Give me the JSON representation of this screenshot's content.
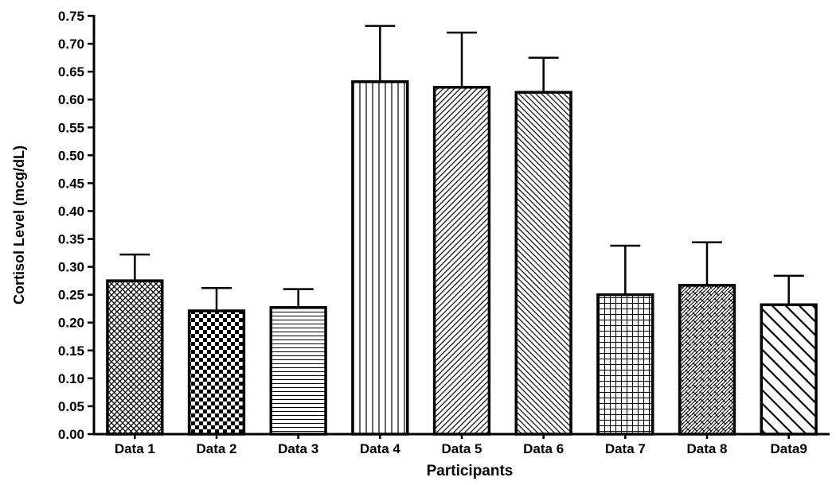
{
  "chart_data": {
    "type": "bar",
    "title": "",
    "xlabel": "Participants",
    "ylabel": "Cortisol Level (mcg/dL)",
    "ylim": [
      0,
      0.75
    ],
    "yticks": [
      "0.00",
      "0.05",
      "0.10",
      "0.15",
      "0.20",
      "0.25",
      "0.30",
      "0.35",
      "0.40",
      "0.45",
      "0.50",
      "0.55",
      "0.60",
      "0.65",
      "0.70",
      "0.75"
    ],
    "categories": [
      "Data 1",
      "Data 2",
      "Data 3",
      "Data 4",
      "Data 5",
      "Data 6",
      "Data 7",
      "Data 8",
      "Data9"
    ],
    "values": [
      0.275,
      0.221,
      0.227,
      0.632,
      0.622,
      0.613,
      0.25,
      0.267,
      0.232
    ],
    "error_upper": [
      0.047,
      0.041,
      0.033,
      0.1,
      0.098,
      0.062,
      0.088,
      0.077,
      0.052
    ],
    "patterns": [
      "diamond-lattice",
      "checkerboard",
      "horizontal-lines",
      "vertical-lines",
      "diagonal-up-dense",
      "diagonal-down-dense",
      "grid",
      "diagonal-weave",
      "diagonal-down-wide"
    ],
    "grid": false,
    "legend": "none",
    "bar_color": "#ffffff",
    "edge_color": "#000000"
  }
}
